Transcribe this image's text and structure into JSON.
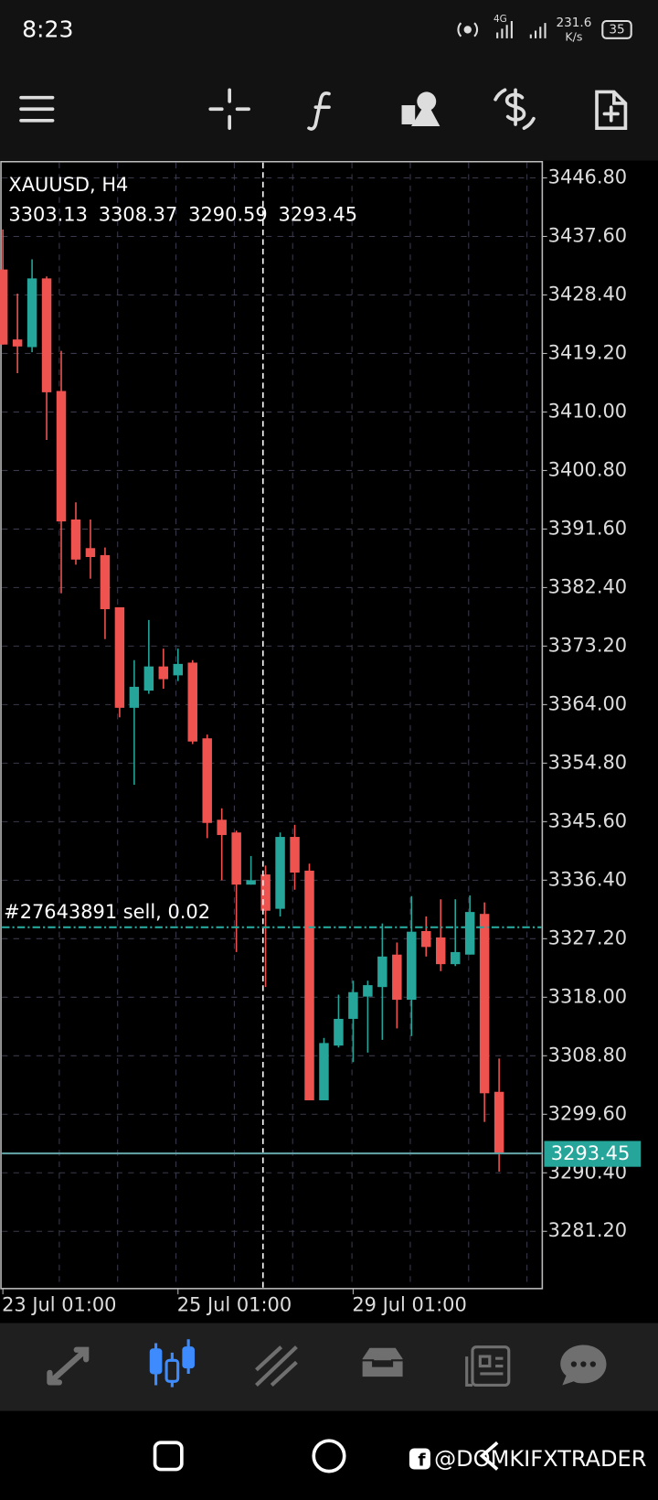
{
  "status_bar": {
    "time": "8:23",
    "network": "4G",
    "speed": 231.6,
    "speed_unit": "K/s",
    "battery": 35
  },
  "chart_data": {
    "type": "candlestick",
    "title": "XAUUSD, H4",
    "categories": [
      "23 Jul 01:00",
      null,
      null,
      null,
      null,
      null,
      null,
      null,
      null,
      null,
      null,
      null,
      "25 Jul 01:00",
      null,
      null,
      null,
      null,
      null,
      null,
      null,
      null,
      null,
      null,
      null,
      "29 Jul 01:00",
      null,
      null,
      null,
      null,
      null,
      null,
      null,
      null,
      null,
      null
    ],
    "open": [
      3432.4,
      3421.4,
      3420.2,
      3431.0,
      3413.3,
      3393.1,
      3388.6,
      3387.5,
      3379.3,
      3363.5,
      3366.2,
      3370.0,
      3368.6,
      3370.6,
      3358.7,
      3345.9,
      3343.9,
      3335.7,
      3337.3,
      3331.9,
      3343.2,
      3337.9,
      3301.8,
      3310.4,
      3314.6,
      3318.1,
      3319.6,
      3324.7,
      3317.6,
      3328.4,
      3327.4,
      3323.2,
      3324.7,
      3331.1,
      3303.13
    ],
    "high": [
      3438.7,
      3428.6,
      3434.0,
      3431.3,
      3419.6,
      3395.8,
      3393.1,
      3388.7,
      3379.3,
      3371.0,
      3377.3,
      3372.8,
      3372.8,
      3371.0,
      3359.3,
      3347.7,
      3344.2,
      3340.2,
      3338.7,
      3343.9,
      3345.1,
      3339.0,
      3311.6,
      3318.4,
      3320.6,
      3320.6,
      3329.6,
      3326.6,
      3333.9,
      3330.7,
      3333.4,
      3333.4,
      3334.0,
      3332.9,
      3308.37
    ],
    "low": [
      3420.6,
      3416.1,
      3419.4,
      3405.6,
      3381.5,
      3386.0,
      3383.8,
      3374.3,
      3362.0,
      3351.4,
      3365.7,
      3366.5,
      3367.7,
      3357.8,
      3343.0,
      3336.4,
      3325.1,
      3335.7,
      3319.6,
      3330.7,
      3334.9,
      3301.8,
      3301.8,
      3310.1,
      3307.8,
      3309.3,
      3311.3,
      3313.1,
      3311.9,
      3324.4,
      3322.1,
      3322.9,
      3324.7,
      3298.4,
      3290.59
    ],
    "close": [
      3420.6,
      3420.3,
      3431.0,
      3413.1,
      3392.8,
      3386.8,
      3387.2,
      3379.0,
      3363.5,
      3366.8,
      3370.0,
      3368.0,
      3370.4,
      3358.2,
      3345.4,
      3343.5,
      3335.7,
      3336.4,
      3331.6,
      3343.2,
      3337.6,
      3301.8,
      3310.8,
      3314.6,
      3318.8,
      3319.9,
      3324.4,
      3317.6,
      3328.3,
      3325.9,
      3323.2,
      3325.1,
      3331.4,
      3302.9,
      3293.45
    ],
    "up_color": "#26a69a",
    "down_color": "#ef5350",
    "ylim": [
      3272.2,
      3449.2
    ],
    "yticks": [
      {
        "value": 3446.8,
        "label": "3446.80"
      },
      {
        "value": 3437.6,
        "label": "3437.60"
      },
      {
        "value": 3428.4,
        "label": "3428.40"
      },
      {
        "value": 3419.2,
        "label": "3419.20"
      },
      {
        "value": 3410.0,
        "label": "3410.00"
      },
      {
        "value": 3400.8,
        "label": "3400.80"
      },
      {
        "value": 3391.6,
        "label": "3391.60"
      },
      {
        "value": 3382.4,
        "label": "3382.40"
      },
      {
        "value": 3373.2,
        "label": "3373.20"
      },
      {
        "value": 3364.0,
        "label": "3364.00"
      },
      {
        "value": 3354.8,
        "label": "3354.80"
      },
      {
        "value": 3345.6,
        "label": "3345.60"
      },
      {
        "value": 3336.4,
        "label": "3336.40"
      },
      {
        "value": 3327.2,
        "label": "3327.20"
      },
      {
        "value": 3318.0,
        "label": "3318.00"
      },
      {
        "value": 3308.8,
        "label": "3308.80"
      },
      {
        "value": 3299.6,
        "label": "3299.60"
      },
      {
        "value": 3290.4,
        "label": "3290.40"
      },
      {
        "value": 3281.2,
        "label": "3281.20"
      }
    ],
    "grid": true,
    "orders": [
      {
        "label": "#27643891 sell, 0.02",
        "price": 3329.0,
        "color": "#26a69a"
      }
    ],
    "price_line_color": "#5f9ea0"
  },
  "watermark": "@DOMKIFXTRADER"
}
